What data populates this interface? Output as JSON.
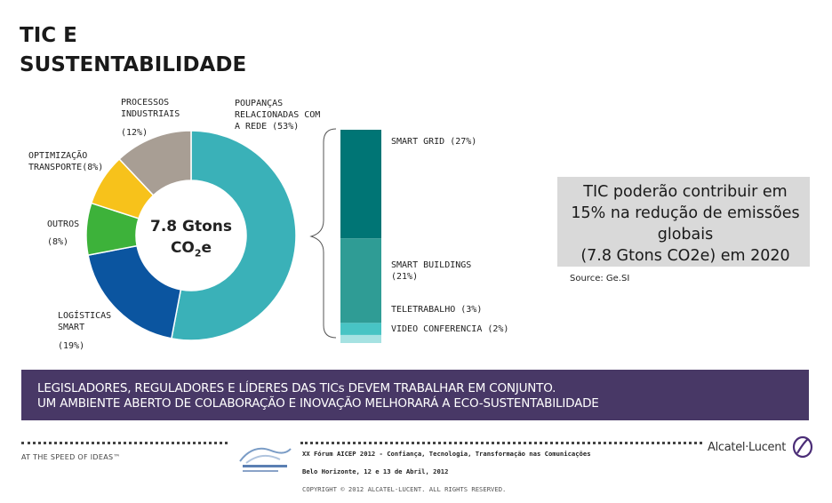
{
  "title": "TIC E\nSUSTENTABILIDADE",
  "donut": {
    "center_main": "7.8 Gtons",
    "center_sub_prefix": "CO",
    "center_sub_2": "2",
    "center_sub_suffix": "e",
    "segments": [
      {
        "name": "POUPANÇAS RELACIONADAS COM A REDE",
        "value": 53,
        "color": "#3ab1b8"
      },
      {
        "name": "LOGÍSTICAS SMART",
        "value": 19,
        "color": "#0b55a0"
      },
      {
        "name": "OUTROS",
        "value": 8,
        "color": "#3db23a"
      },
      {
        "name": "OPTIMIZAÇÃO TRANSPORTE",
        "value": 8,
        "color": "#f7c21b"
      },
      {
        "name": "PROCESSOS INDUSTRIAIS",
        "value": 12,
        "color": "#a89e94"
      }
    ]
  },
  "labels": {
    "processos": "PROCESSOS\nINDUSTRIAIS",
    "processos_pct": "(12%)",
    "poupancas": "POUPANÇAS\nRELACIONADAS COM\nA REDE (53%)",
    "optimizacao": "OPTIMIZAÇÃO\nTRANSPORTE(8%)",
    "outros": "OUTROS",
    "outros_pct": "(8%)",
    "logisticas": "LOGÍSTICAS\nSMART",
    "logisticas_pct": "(19%)"
  },
  "stack": {
    "segments": [
      {
        "name": "SMART GRID",
        "pct": "(27%)",
        "value": 27,
        "color": "#007575"
      },
      {
        "name": "SMART BUILDINGS",
        "pct": "(21%)",
        "value": 21,
        "color": "#2f9c95"
      },
      {
        "name": "TELETRABALHO",
        "pct": "(3%)",
        "value": 3,
        "color": "#48c4c4"
      },
      {
        "name": "VIDEO CONFERENCIA",
        "pct": "(2%)",
        "value": 2,
        "color": "#a6e2e2"
      }
    ],
    "smart_grid_label": "SMART GRID (27%)",
    "smart_buildings_label": "SMART BUILDINGS\n(21%)",
    "teletrabalho_label": "TELETRABALHO (3%)",
    "video_label": "VIDEO CONFERENCIA (2%)"
  },
  "callout": {
    "text": "TIC poderão contribuir em\n15% na redução de emissões\nglobais\n(7.8 Gtons CO2e) em 2020",
    "source": "Source: Ge.SI"
  },
  "banner": {
    "text": "LEGISLADORES, REGULADORES E LÍDERES DAS TICs  DEVEM TRABALHAR EM CONJUNTO.\nUM AMBIENTE ABERTO DE COLABORAÇÃO E INOVAÇÃO MELHORARÁ A ECO-SUSTENTABILIDADE",
    "color": "#483866"
  },
  "footer": {
    "tagline": "AT THE SPEED OF IDEAS™",
    "line1": "XX Fórum AICEP 2012 - Confiança, Tecnologia, Transformação nas Comunicações",
    "line2": "Belo Horizonte, 12 e 13 de Abril, 2012",
    "copyright": "COPYRIGHT © 2012 ALCATEL-LUCENT. ALL RIGHTS RESERVED.",
    "brand": "Alcatel·Lucent",
    "brand_color": "#4b2d77"
  }
}
